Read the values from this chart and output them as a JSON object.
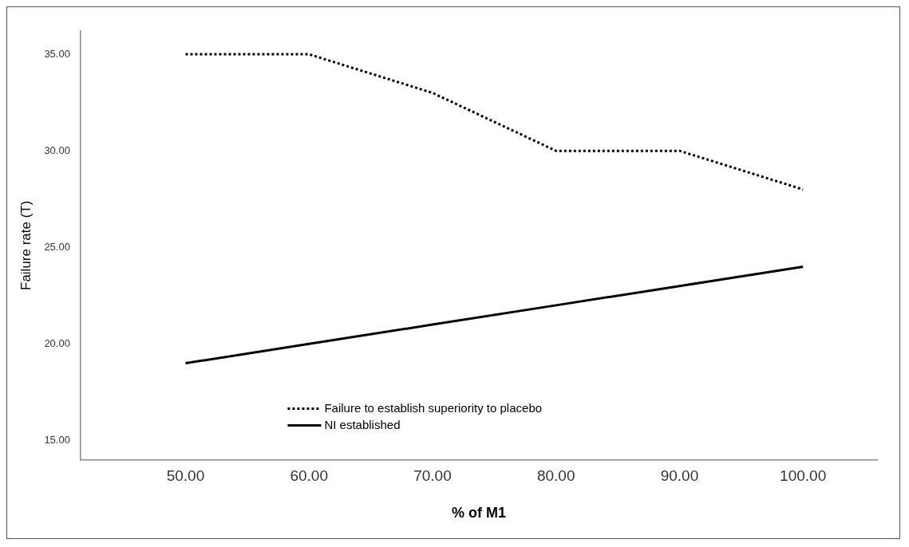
{
  "chart_data": {
    "type": "line",
    "xlabel": "% of M1",
    "ylabel": "Failure rate (T)",
    "x": [
      50,
      60,
      70,
      80,
      90,
      100
    ],
    "series": [
      {
        "name": "Failure to establish superiority to placebo",
        "color": "#000000",
        "line_style": "dotted",
        "values": [
          35,
          35,
          33,
          30,
          30,
          28
        ]
      },
      {
        "name": "NI established",
        "color": "#000000",
        "line_style": "solid",
        "values": [
          19,
          20,
          21,
          22,
          23,
          24
        ]
      }
    ],
    "xlim": [
      41.5,
      106
    ],
    "xticks": [
      {
        "value": 50,
        "label": "50.00"
      },
      {
        "value": 60,
        "label": "60.00"
      },
      {
        "value": 70,
        "label": "70.00"
      },
      {
        "value": 80,
        "label": "80.00"
      },
      {
        "value": 90,
        "label": "90.00"
      },
      {
        "value": 100,
        "label": "100.00"
      }
    ],
    "ylim": [
      14,
      36.2
    ],
    "yticks": [
      {
        "value": 15,
        "label": "15.00"
      },
      {
        "value": 20,
        "label": "20.00"
      },
      {
        "value": 25,
        "label": "25.00"
      },
      {
        "value": 30,
        "label": "30.00"
      },
      {
        "value": 35,
        "label": "35.00"
      }
    ],
    "grid": false,
    "legend": "bottom left",
    "marker": "none"
  }
}
